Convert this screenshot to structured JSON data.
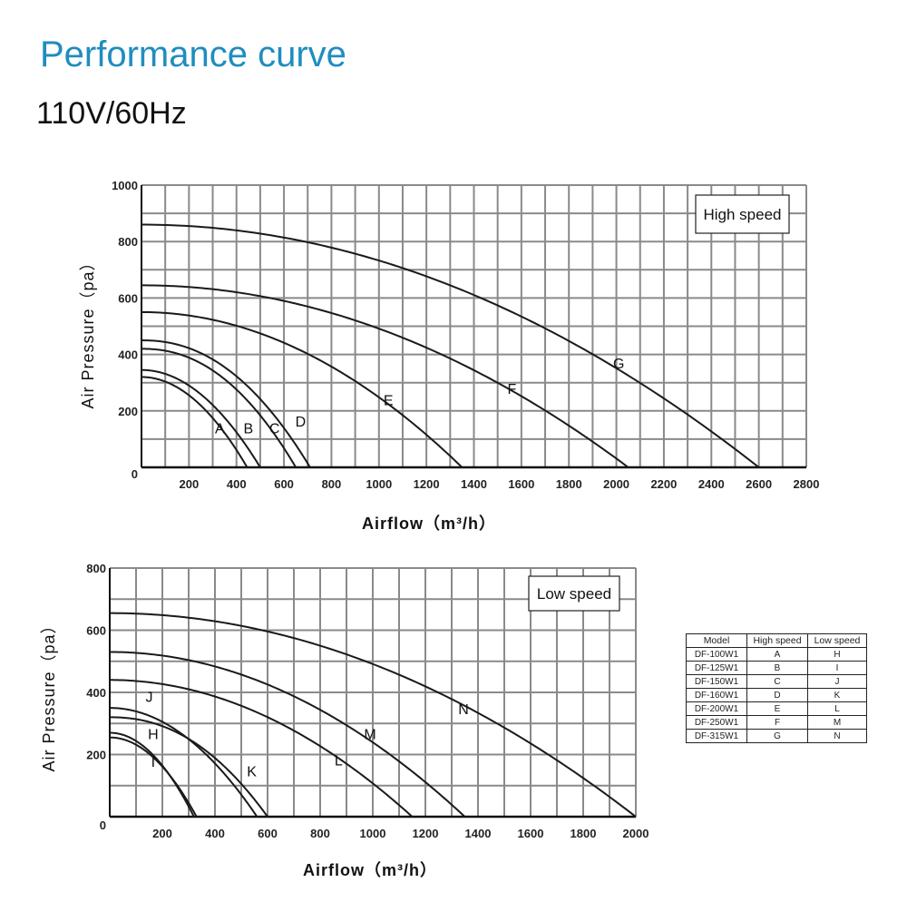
{
  "header": {
    "title": "Performance curve",
    "subtitle": "110V/60Hz"
  },
  "chart_data": [
    {
      "type": "line",
      "badge": "High speed",
      "xlabel": "Airflow（m³/h）",
      "ylabel": "Air Pressure（pa）",
      "xlim": [
        0,
        2800
      ],
      "ylim": [
        0,
        1000
      ],
      "x_ticks": [
        "200",
        "400",
        "600",
        "800",
        "1000",
        "1200",
        "1400",
        "1600",
        "1800",
        "2000",
        "2200",
        "2400",
        "2600",
        "2800"
      ],
      "y_ticks": [
        "0",
        "200",
        "400",
        "600",
        "800",
        "1000"
      ],
      "grid": true,
      "series": [
        {
          "name": "A",
          "max_pressure": 320,
          "max_airflow": 445,
          "exponent": 2.0,
          "label_at": [
            330,
            120
          ]
        },
        {
          "name": "B",
          "max_pressure": 345,
          "max_airflow": 500,
          "exponent": 2.0,
          "label_at": [
            450,
            120
          ]
        },
        {
          "name": "C",
          "max_pressure": 420,
          "max_airflow": 650,
          "exponent": 2.2,
          "label_at": [
            560,
            120
          ]
        },
        {
          "name": "D",
          "max_pressure": 450,
          "max_airflow": 710,
          "exponent": 2.2,
          "label_at": [
            670,
            145
          ]
        },
        {
          "name": "E",
          "max_pressure": 550,
          "max_airflow": 1350,
          "exponent": 2.0,
          "label_at": [
            1040,
            220
          ]
        },
        {
          "name": "F",
          "max_pressure": 645,
          "max_airflow": 2050,
          "exponent": 2.0,
          "label_at": [
            1560,
            260
          ]
        },
        {
          "name": "G",
          "max_pressure": 860,
          "max_airflow": 2600,
          "exponent": 2.0,
          "label_at": [
            2010,
            350
          ]
        }
      ]
    },
    {
      "type": "line",
      "badge": "Low speed",
      "xlabel": "Airflow（m³/h）",
      "ylabel": "Air Pressure（pa）",
      "xlim": [
        0,
        2000
      ],
      "ylim": [
        0,
        800
      ],
      "x_ticks": [
        "200",
        "400",
        "600",
        "800",
        "1000",
        "1200",
        "1400",
        "1600",
        "1800",
        "2000"
      ],
      "y_ticks": [
        "0",
        "200",
        "400",
        "600",
        "800"
      ],
      "grid": true,
      "series": [
        {
          "name": "H",
          "max_pressure": 270,
          "max_airflow": 320,
          "exponent": 2.0,
          "label_at": [
            165,
            250
          ]
        },
        {
          "name": "I",
          "max_pressure": 255,
          "max_airflow": 330,
          "exponent": 2.0,
          "label_at": [
            165,
            160
          ]
        },
        {
          "name": "J",
          "max_pressure": 350,
          "max_airflow": 560,
          "exponent": 2.0,
          "label_at": [
            150,
            370
          ]
        },
        {
          "name": "K",
          "max_pressure": 320,
          "max_airflow": 600,
          "exponent": 2.2,
          "label_at": [
            540,
            130
          ]
        },
        {
          "name": "L",
          "max_pressure": 440,
          "max_airflow": 1150,
          "exponent": 2.0,
          "label_at": [
            870,
            165
          ]
        },
        {
          "name": "M",
          "max_pressure": 530,
          "max_airflow": 1350,
          "exponent": 2.0,
          "label_at": [
            990,
            250
          ]
        },
        {
          "name": "N",
          "max_pressure": 655,
          "max_airflow": 2000,
          "exponent": 2.0,
          "label_at": [
            1345,
            330
          ]
        }
      ]
    }
  ],
  "model_table": {
    "headers": [
      "Model",
      "High speed",
      "Low speed"
    ],
    "rows": [
      [
        "DF-100W1",
        "A",
        "H"
      ],
      [
        "DF-125W1",
        "B",
        "I"
      ],
      [
        "DF-150W1",
        "C",
        "J"
      ],
      [
        "DF-160W1",
        "D",
        "K"
      ],
      [
        "DF-200W1",
        "E",
        "L"
      ],
      [
        "DF-250W1",
        "F",
        "M"
      ],
      [
        "DF-315W1",
        "G",
        "N"
      ]
    ]
  }
}
